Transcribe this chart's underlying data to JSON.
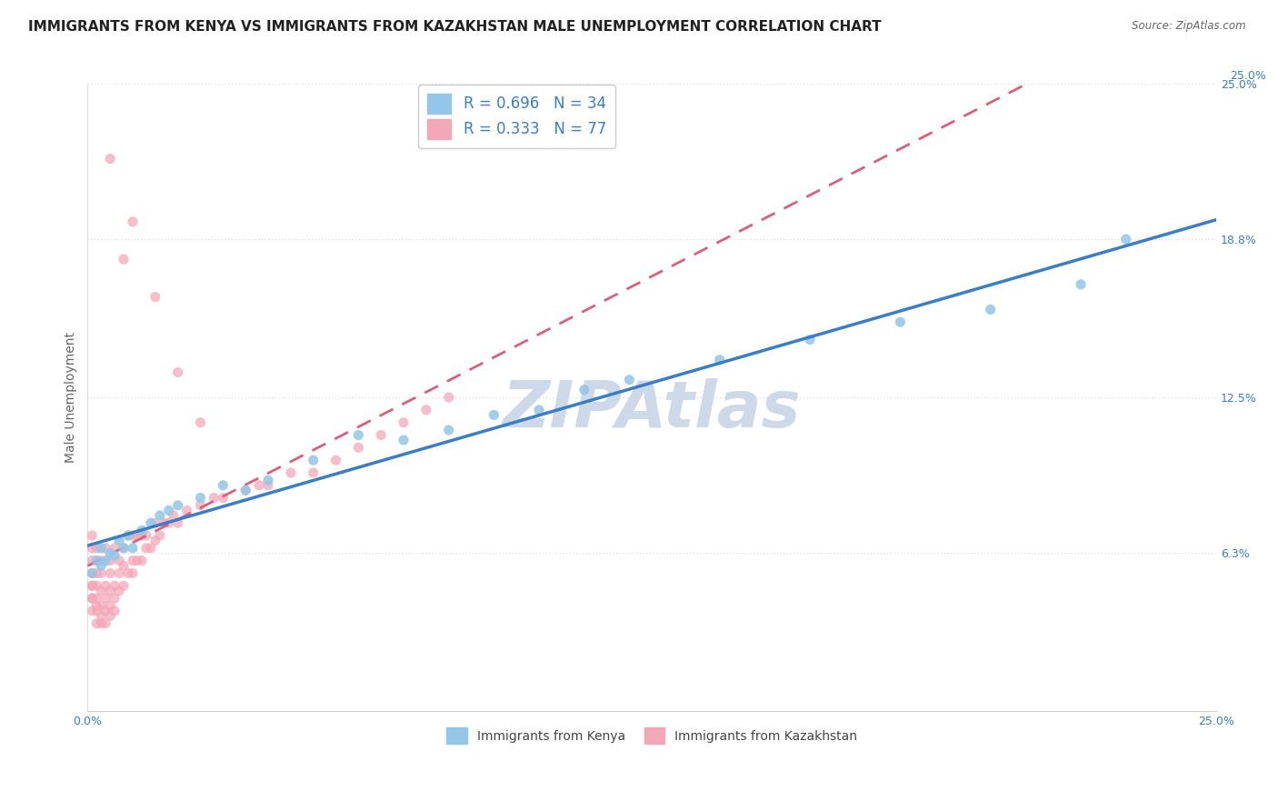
{
  "title": "IMMIGRANTS FROM KENYA VS IMMIGRANTS FROM KAZAKHSTAN MALE UNEMPLOYMENT CORRELATION CHART",
  "source": "Source: ZipAtlas.com",
  "ylabel": "Male Unemployment",
  "watermark": "ZIPAtlas",
  "xlim": [
    0.0,
    0.25
  ],
  "ylim": [
    0.0,
    0.25
  ],
  "yticks": [
    0.063,
    0.125,
    0.188,
    0.25
  ],
  "ytick_labels": [
    "6.3%",
    "12.5%",
    "18.8%",
    "25.0%"
  ],
  "xticks": [
    0.0,
    0.05,
    0.1,
    0.15,
    0.2,
    0.25
  ],
  "xtick_labels": [
    "0.0%",
    "",
    "",
    "",
    "",
    "25.0%"
  ],
  "kenya": {
    "name": "Immigrants from Kenya",
    "color": "#93c6e8",
    "trend_color": "#3a7ec8",
    "R": 0.696,
    "N": 34,
    "x": [
      0.001,
      0.002,
      0.003,
      0.003,
      0.004,
      0.005,
      0.006,
      0.007,
      0.008,
      0.009,
      0.01,
      0.012,
      0.014,
      0.016,
      0.018,
      0.02,
      0.025,
      0.03,
      0.035,
      0.04,
      0.05,
      0.06,
      0.07,
      0.08,
      0.09,
      0.1,
      0.11,
      0.12,
      0.14,
      0.16,
      0.18,
      0.2,
      0.22,
      0.23
    ],
    "y": [
      0.055,
      0.06,
      0.058,
      0.065,
      0.06,
      0.063,
      0.062,
      0.068,
      0.065,
      0.07,
      0.065,
      0.072,
      0.075,
      0.078,
      0.08,
      0.082,
      0.085,
      0.09,
      0.088,
      0.092,
      0.1,
      0.11,
      0.108,
      0.112,
      0.118,
      0.12,
      0.128,
      0.132,
      0.14,
      0.148,
      0.155,
      0.16,
      0.17,
      0.188
    ]
  },
  "kazakhstan": {
    "name": "Immigrants from Kazakhstan",
    "color": "#f4a7b9",
    "trend_color": "#d9607a",
    "R": 0.333,
    "N": 77,
    "x": [
      0.001,
      0.001,
      0.001,
      0.001,
      0.001,
      0.001,
      0.001,
      0.001,
      0.001,
      0.002,
      0.002,
      0.002,
      0.002,
      0.002,
      0.002,
      0.002,
      0.002,
      0.003,
      0.003,
      0.003,
      0.003,
      0.003,
      0.003,
      0.004,
      0.004,
      0.004,
      0.004,
      0.004,
      0.005,
      0.005,
      0.005,
      0.005,
      0.005,
      0.006,
      0.006,
      0.006,
      0.006,
      0.007,
      0.007,
      0.007,
      0.008,
      0.008,
      0.008,
      0.009,
      0.009,
      0.01,
      0.01,
      0.01,
      0.011,
      0.011,
      0.012,
      0.012,
      0.013,
      0.013,
      0.014,
      0.015,
      0.015,
      0.016,
      0.017,
      0.018,
      0.019,
      0.02,
      0.022,
      0.025,
      0.028,
      0.03,
      0.035,
      0.038,
      0.04,
      0.045,
      0.05,
      0.055,
      0.06,
      0.065,
      0.07,
      0.075,
      0.08
    ],
    "y": [
      0.04,
      0.045,
      0.05,
      0.055,
      0.06,
      0.065,
      0.07,
      0.05,
      0.045,
      0.04,
      0.045,
      0.05,
      0.055,
      0.06,
      0.035,
      0.042,
      0.065,
      0.038,
      0.042,
      0.048,
      0.055,
      0.06,
      0.035,
      0.04,
      0.045,
      0.05,
      0.065,
      0.035,
      0.042,
      0.048,
      0.055,
      0.06,
      0.038,
      0.045,
      0.05,
      0.065,
      0.04,
      0.048,
      0.055,
      0.06,
      0.05,
      0.058,
      0.065,
      0.055,
      0.07,
      0.055,
      0.06,
      0.07,
      0.06,
      0.07,
      0.06,
      0.07,
      0.065,
      0.07,
      0.065,
      0.068,
      0.075,
      0.07,
      0.075,
      0.075,
      0.078,
      0.075,
      0.08,
      0.082,
      0.085,
      0.085,
      0.088,
      0.09,
      0.09,
      0.095,
      0.095,
      0.1,
      0.105,
      0.11,
      0.115,
      0.12,
      0.125
    ]
  },
  "kazakhstan_outliers_x": [
    0.01,
    0.015,
    0.02,
    0.025,
    0.005,
    0.008
  ],
  "kazakhstan_outliers_y": [
    0.195,
    0.165,
    0.135,
    0.115,
    0.22,
    0.18
  ],
  "background_color": "#ffffff",
  "grid_color": "#e0e0e0",
  "title_fontsize": 11,
  "axis_fontsize": 10,
  "tick_fontsize": 9,
  "watermark_color": "#cdd8e8",
  "watermark_fontsize": 52
}
